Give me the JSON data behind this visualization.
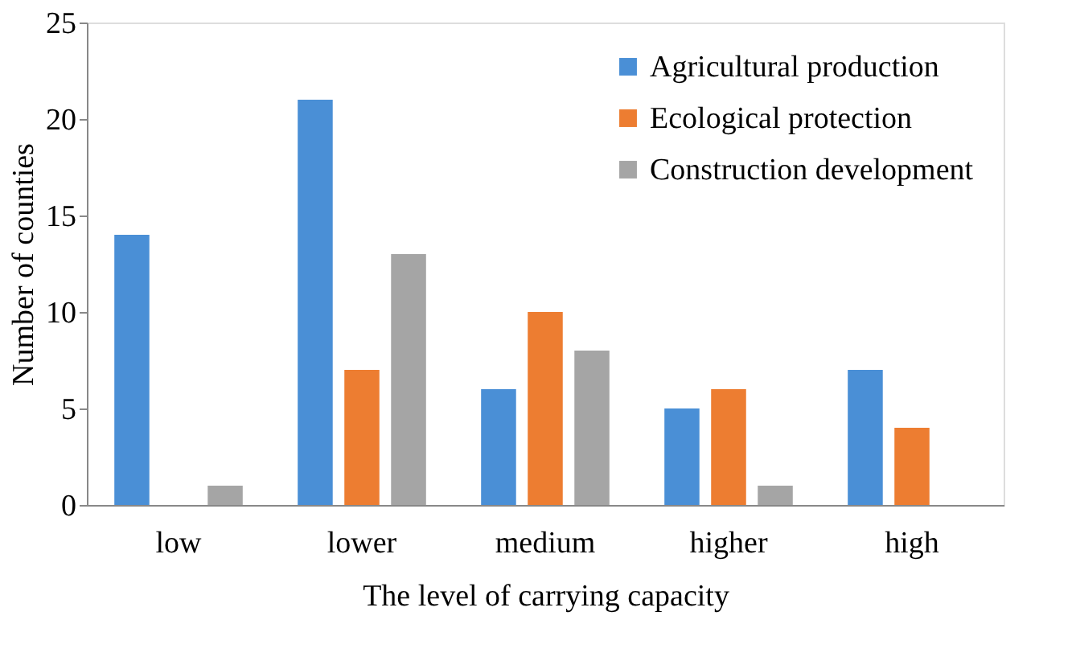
{
  "chart_data": {
    "type": "bar",
    "xlabel": "The level of carrying capacity",
    "ylabel": "Number of counties",
    "categories": [
      "low",
      "lower",
      "medium",
      "higher",
      "high"
    ],
    "series": [
      {
        "name": "Agricultural production",
        "color": "#4a8fd6",
        "values": [
          14,
          21,
          6,
          5,
          7
        ]
      },
      {
        "name": "Ecological protection",
        "color": "#ed7d31",
        "values": [
          0,
          7,
          10,
          6,
          4
        ]
      },
      {
        "name": "Construction development",
        "color": "#a5a5a5",
        "values": [
          1,
          13,
          8,
          1,
          0
        ]
      }
    ],
    "ylim": [
      0,
      25
    ],
    "yticks": [
      0,
      5,
      10,
      15,
      20,
      25
    ],
    "grid": false,
    "legend": "top right"
  }
}
